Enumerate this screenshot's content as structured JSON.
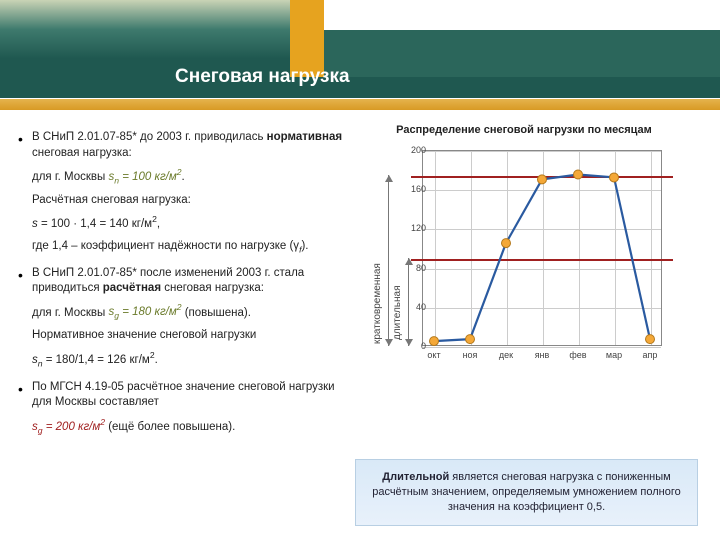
{
  "title": "Снеговая нагрузка",
  "bullets": {
    "b1_lead": "В СНиП 2.01.07-85* до 2003 г. приводилась ",
    "b1_bold": "нормативная",
    "b1_tail": " снеговая нагрузка:",
    "b1_p1a": "для г. Москвы   ",
    "b1_formula1": "sₙ = 100 кг/м²",
    "b1_p1b": ".",
    "b1_p2": "Расчётная снеговая нагрузка:",
    "b1_p3": "s = 100 · 1,4 = 140 кг/м²,",
    "b1_p4": "где 1,4 – коэффициент надёжности по нагрузке (γf).",
    "b2_lead": "В СНиП 2.01.07-85* после изменений 2003 г. стала приводиться ",
    "b2_bold": "расчётная",
    "b2_tail": " снеговая нагрузка:",
    "b2_p1a": "для г. Москвы   ",
    "b2_formula1": "sg = 180 кг/м²",
    "b2_p1b": "   (повышена).",
    "b2_p2": "Нормативное значение снеговой нагрузки",
    "b2_p3": "sₙ = 180/1,4 = 126 кг/м².",
    "b3_lead": "По МГСН 4.19-05 расчётное значение снеговой нагрузки для Москвы составляет",
    "b3_formula": "sg = 200 кг/м²",
    "b3_tail": " (ещё более повышена)."
  },
  "chart": {
    "title": "Распределение снеговой нагрузки по месяцам",
    "x_labels": [
      "окт",
      "ноя",
      "дек",
      "янв",
      "фев",
      "мар",
      "апр"
    ],
    "y_ticks": [
      0,
      40,
      80,
      120,
      160,
      200
    ],
    "ylim": [
      0,
      200
    ],
    "values": [
      5,
      7,
      105,
      170,
      175,
      172,
      7
    ],
    "ref_high": 174,
    "ref_low": 90,
    "line_color": "#2a5aa0",
    "marker_fill": "#f4a838",
    "marker_stroke": "#b4781a",
    "grid_color": "#cccccc",
    "label_long": "длительная",
    "label_short": "кратковременная"
  },
  "callout": {
    "bold": "Длительной",
    "text": " является снеговая нагрузка с пониженным расчётным значением, определяемым умножением полного значения на коэффициент 0,5."
  }
}
